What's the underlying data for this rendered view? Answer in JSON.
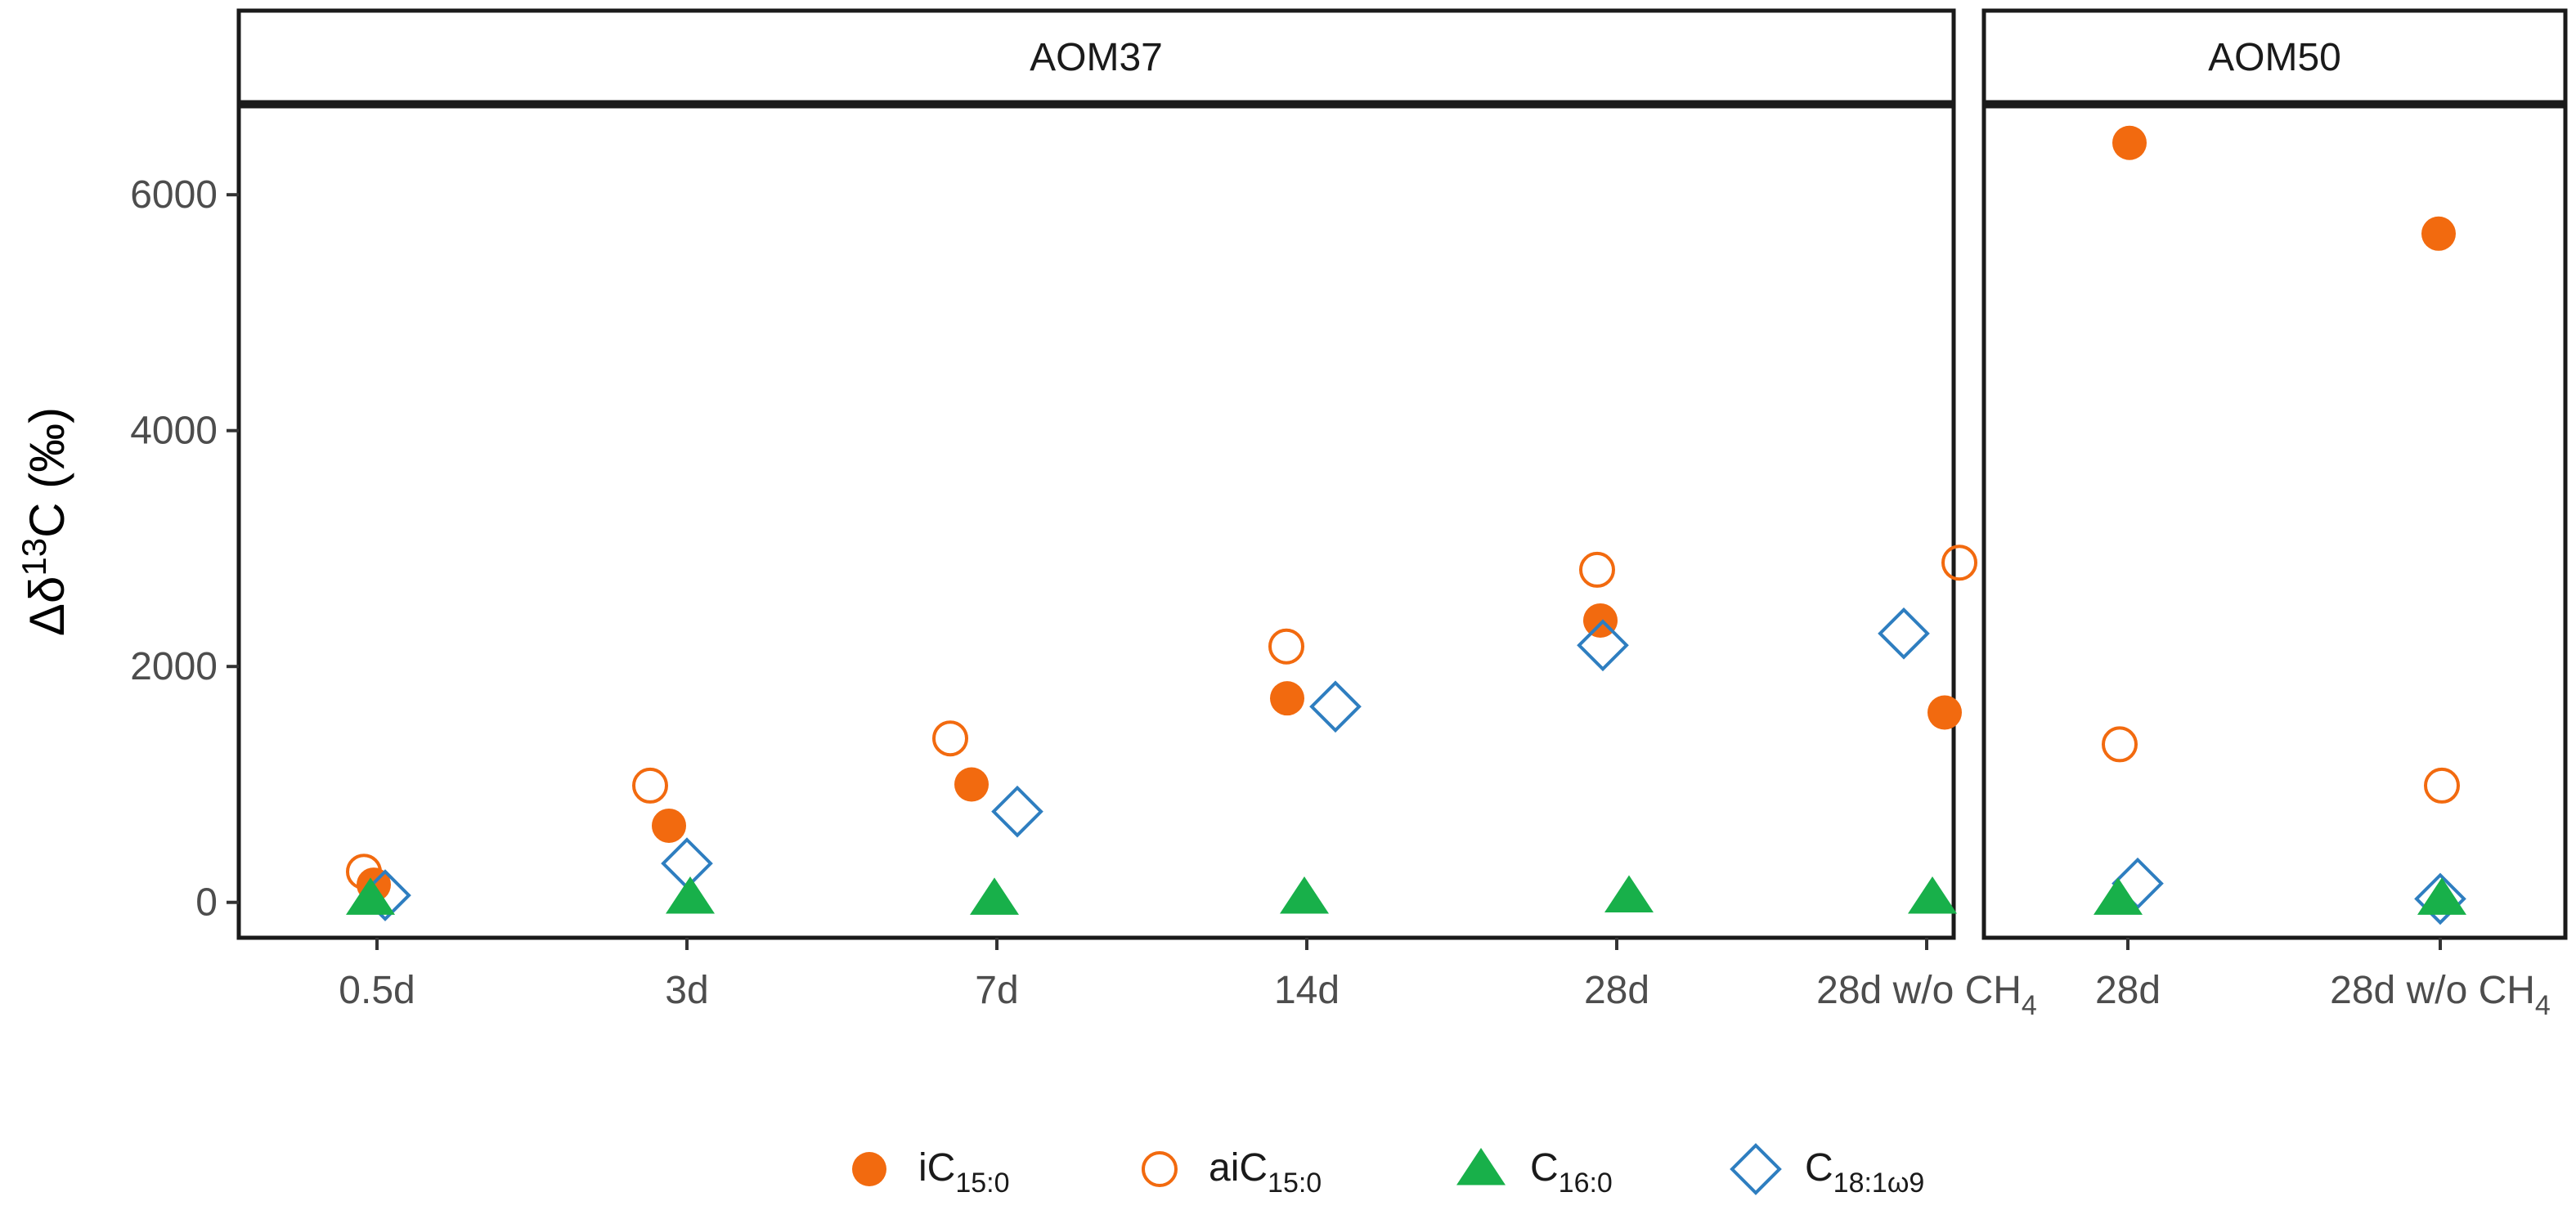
{
  "chart_data": {
    "type": "scatter",
    "ylabel": {
      "main": "Δδ",
      "sup": "13",
      "tail": "C (‰)"
    },
    "ylim": [
      -300,
      6750
    ],
    "yticks": [
      0,
      2000,
      4000,
      6000
    ],
    "panels": [
      {
        "label": "AOM37",
        "categories": [
          {
            "base": "0.5d",
            "sub": ""
          },
          {
            "base": "3d",
            "sub": ""
          },
          {
            "base": "7d",
            "sub": ""
          },
          {
            "base": "14d",
            "sub": ""
          },
          {
            "base": "28d",
            "sub": ""
          },
          {
            "base": "28d w/o CH",
            "sub": "4"
          }
        ],
        "series": [
          {
            "key": "iC15",
            "values": [
              150,
              650,
              1000,
              1730,
              2390,
              1610
            ]
          },
          {
            "key": "aiC15",
            "values": [
              260,
              990,
              1390,
              2170,
              2820,
              2880
            ]
          },
          {
            "key": "C16",
            "values": [
              30,
              40,
              30,
              40,
              50,
              40
            ]
          },
          {
            "key": "C18",
            "values": [
              60,
              330,
              770,
              1660,
              2180,
              2280
            ]
          }
        ]
      },
      {
        "label": "AOM50",
        "categories": [
          {
            "base": "28d",
            "sub": ""
          },
          {
            "base": "28d w/o CH",
            "sub": "4"
          }
        ],
        "series": [
          {
            "key": "iC15",
            "values": [
              6440,
              5670
            ]
          },
          {
            "key": "aiC15",
            "values": [
              1340,
              990
            ]
          },
          {
            "key": "C16",
            "values": [
              30,
              30
            ]
          },
          {
            "key": "C18",
            "values": [
              160,
              30
            ]
          }
        ]
      }
    ],
    "legend": [
      {
        "key": "iC15",
        "base": "iC",
        "sub": "15:0",
        "shape": "filled-circle",
        "color": "#F26A0F"
      },
      {
        "key": "aiC15",
        "base": "aiC",
        "sub": "15:0",
        "shape": "open-circle",
        "color": "#F26A0F"
      },
      {
        "key": "C16",
        "base": "C",
        "sub": "16:0",
        "shape": "filled-triangle",
        "color": "#18B04A"
      },
      {
        "key": "C18",
        "base": "C",
        "sub": "18:1ω9",
        "shape": "open-diamond",
        "color": "#2E7EC0"
      }
    ],
    "legend_position": "bottom"
  }
}
